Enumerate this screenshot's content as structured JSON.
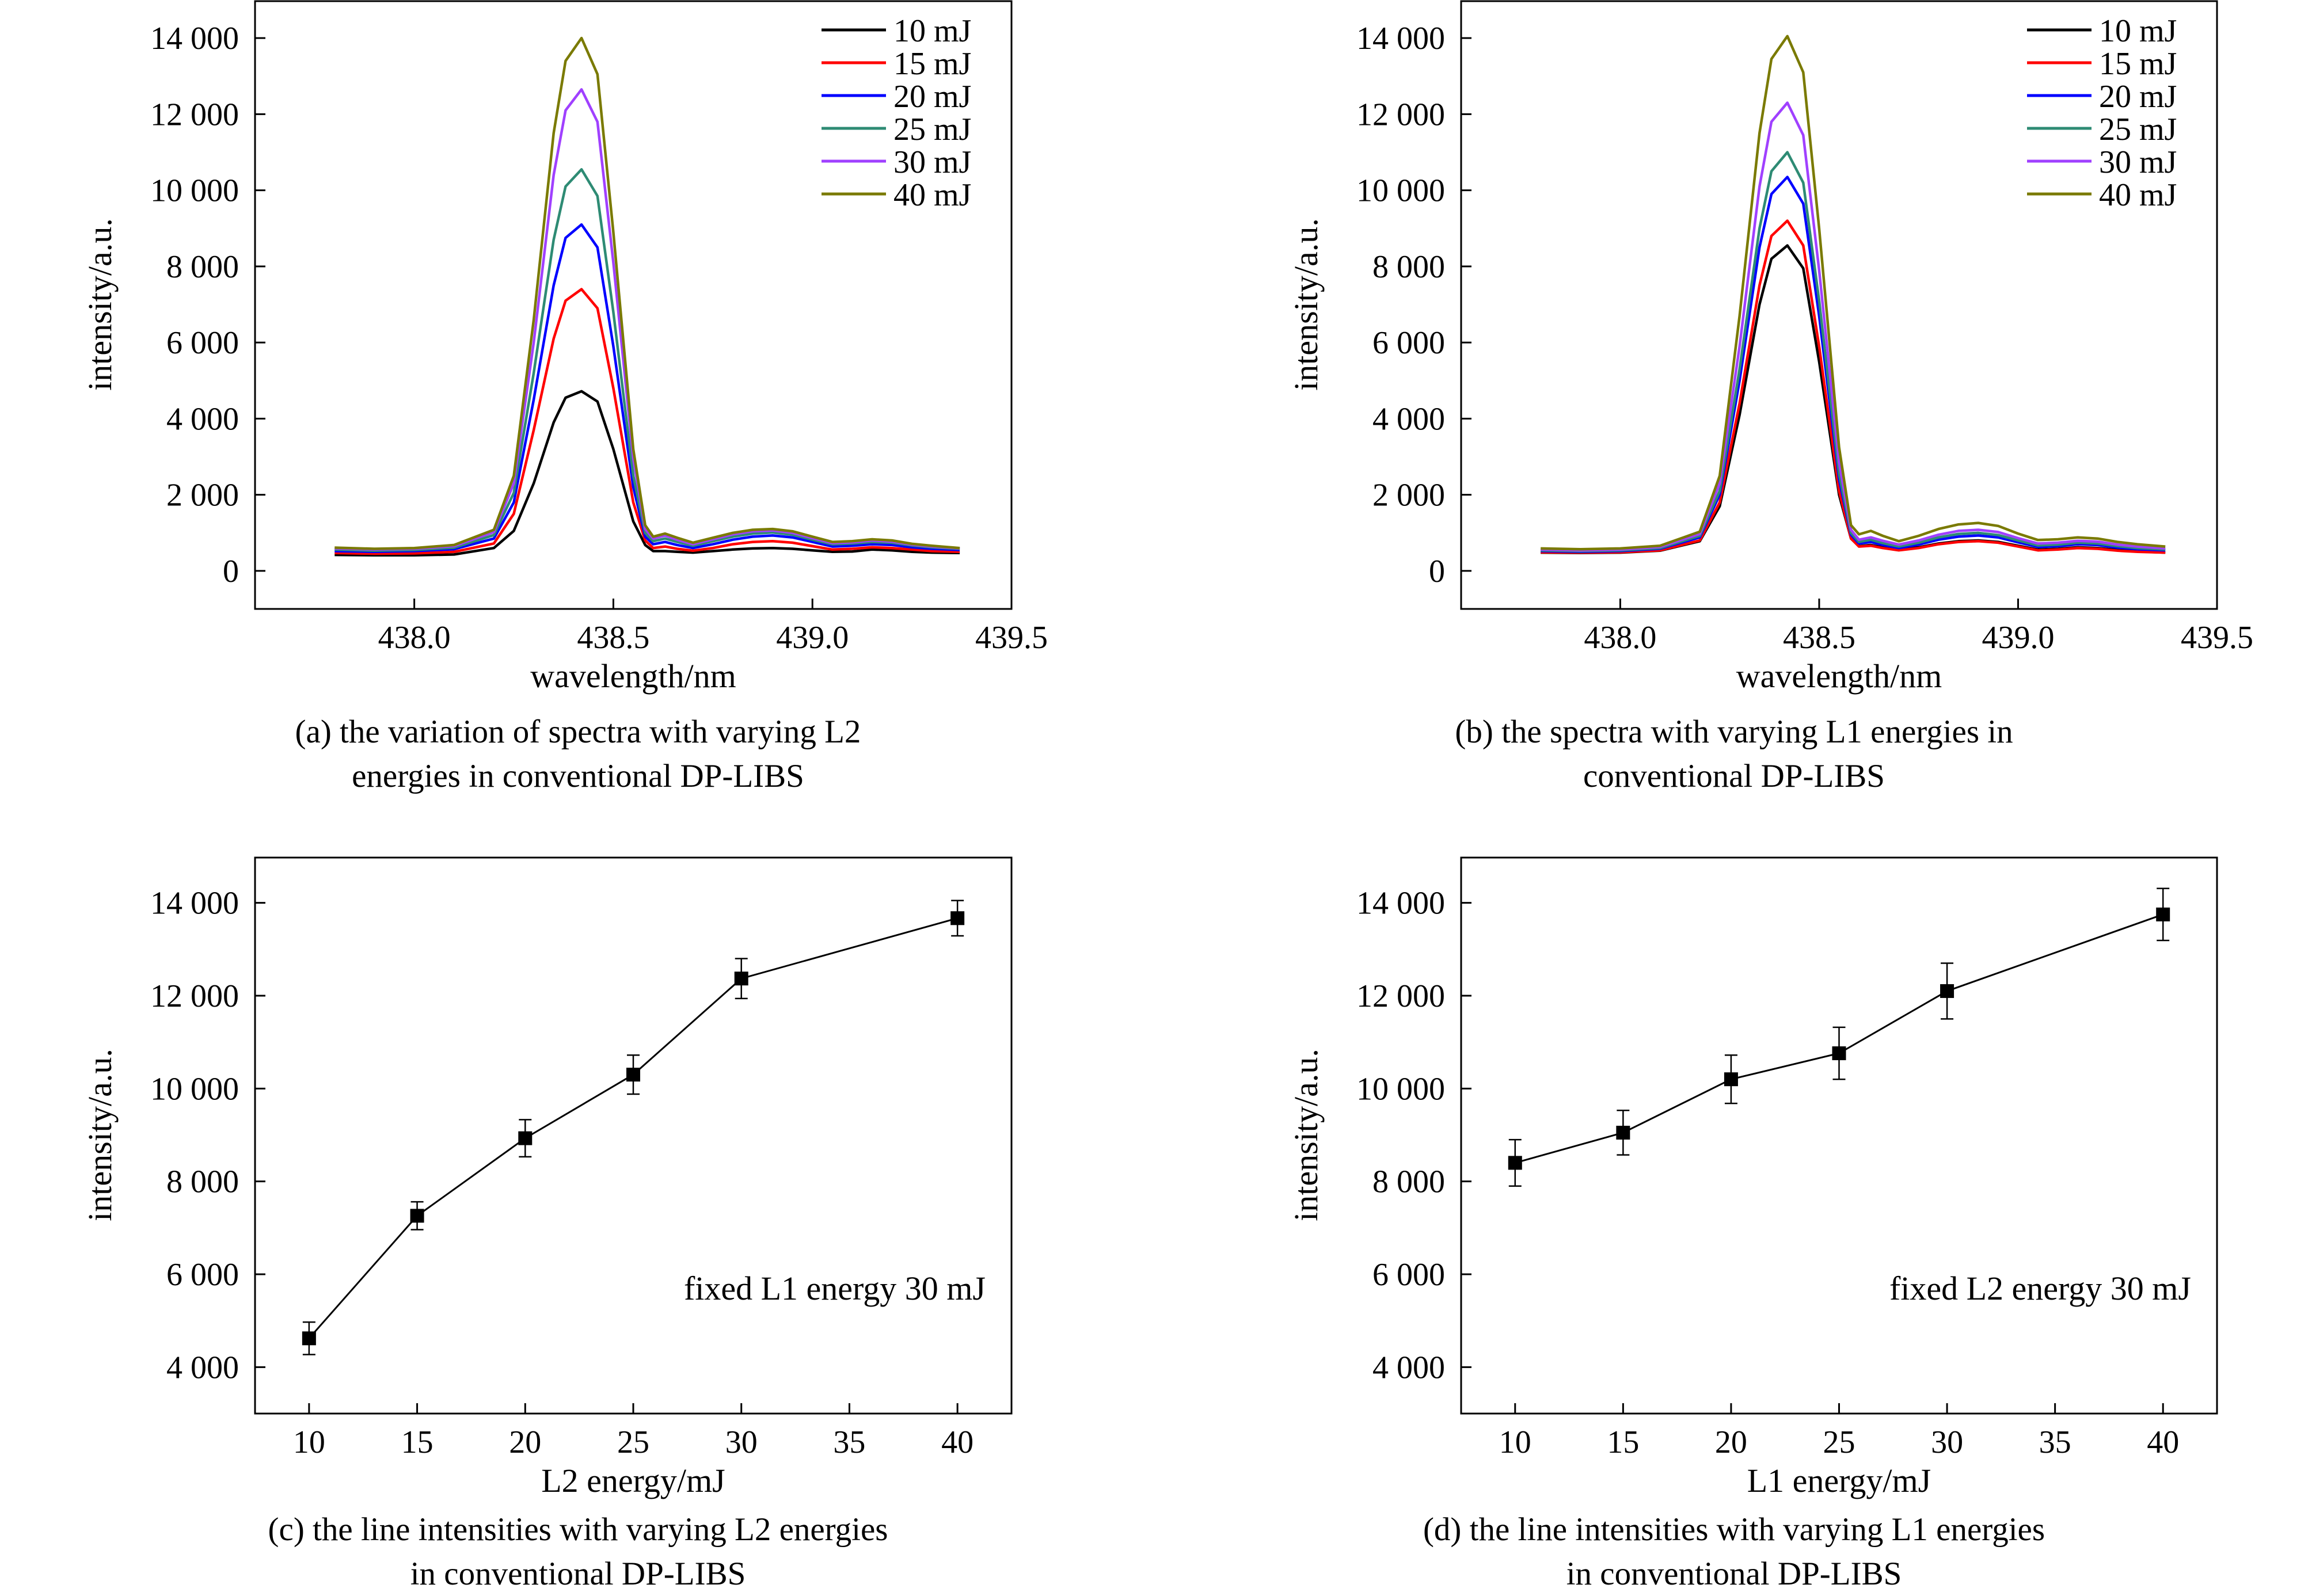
{
  "chart_data": [
    {
      "id": "a",
      "type": "line",
      "caption_line1": "(a) the variation of spectra with varying L2",
      "caption_line2": "energies in conventional DP-LIBS",
      "xlabel": "wavelength/nm",
      "ylabel": "intensity/a.u.",
      "xlim": [
        437.6,
        439.5
      ],
      "ylim": [
        -1000,
        15000
      ],
      "xticks": [
        438.0,
        438.5,
        439.0,
        439.5
      ],
      "xtick_labels": [
        "438.0",
        "438.5",
        "439.0",
        "439.5"
      ],
      "yticks": [
        0,
        2000,
        4000,
        6000,
        8000,
        10000,
        12000,
        14000
      ],
      "ytick_labels": [
        "0",
        "2 000",
        "4 000",
        "6 000",
        "8 000",
        "10 000",
        "12 000",
        "14 000"
      ],
      "legend_position": "top-right",
      "grid": false,
      "x": [
        437.8,
        437.9,
        438.0,
        438.1,
        438.2,
        438.25,
        438.3,
        438.35,
        438.38,
        438.42,
        438.46,
        438.5,
        438.55,
        438.58,
        438.6,
        438.63,
        438.66,
        438.7,
        438.75,
        438.8,
        438.85,
        438.9,
        438.95,
        439.0,
        439.05,
        439.1,
        439.15,
        439.2,
        439.25,
        439.3,
        439.37
      ],
      "series": [
        {
          "name": "10 mJ",
          "color": "#000000",
          "values": [
            420,
            410,
            410,
            430,
            600,
            1050,
            2300,
            3900,
            4550,
            4720,
            4450,
            3200,
            1300,
            680,
            520,
            520,
            500,
            480,
            520,
            560,
            590,
            600,
            580,
            540,
            500,
            510,
            560,
            540,
            500,
            480,
            470
          ]
        },
        {
          "name": "15 mJ",
          "color": "#ff0000",
          "values": [
            470,
            450,
            460,
            500,
            720,
            1500,
            3700,
            6100,
            7100,
            7400,
            6900,
            4800,
            1800,
            800,
            600,
            640,
            580,
            530,
            600,
            700,
            760,
            780,
            740,
            650,
            560,
            580,
            620,
            600,
            560,
            520,
            500
          ]
        },
        {
          "name": "20 mJ",
          "color": "#0000ff",
          "values": [
            520,
            500,
            520,
            570,
            850,
            1800,
            4500,
            7500,
            8750,
            9100,
            8500,
            5900,
            2200,
            900,
            700,
            760,
            680,
            600,
            700,
            820,
            900,
            930,
            880,
            760,
            640,
            660,
            700,
            680,
            620,
            580,
            550
          ]
        },
        {
          "name": "25 mJ",
          "color": "#2e8b74",
          "values": [
            560,
            530,
            550,
            610,
            940,
            2050,
            5200,
            8700,
            10100,
            10550,
            9850,
            6800,
            2500,
            1000,
            780,
            850,
            760,
            660,
            780,
            900,
            980,
            1010,
            950,
            820,
            700,
            720,
            760,
            740,
            670,
            620,
            580
          ]
        },
        {
          "name": "30 mJ",
          "color": "#a040ff",
          "values": [
            590,
            560,
            580,
            650,
            1020,
            2300,
            6000,
            10400,
            12100,
            12650,
            11800,
            8100,
            2950,
            1100,
            850,
            930,
            820,
            700,
            830,
            960,
            1040,
            1060,
            1000,
            860,
            730,
            750,
            800,
            770,
            690,
            640,
            590
          ]
        },
        {
          "name": "40 mJ",
          "color": "#7a7a00",
          "values": [
            610,
            580,
            600,
            680,
            1080,
            2500,
            6600,
            11500,
            13400,
            14000,
            13050,
            8900,
            3200,
            1200,
            900,
            980,
            870,
            740,
            870,
            1000,
            1080,
            1100,
            1040,
            900,
            760,
            780,
            830,
            800,
            710,
            660,
            600
          ]
        }
      ]
    },
    {
      "id": "b",
      "type": "line",
      "caption_line1": "(b) the spectra with varying L1 energies in",
      "caption_line2": "conventional DP-LIBS",
      "xlabel": "wavelength/nm",
      "ylabel": "intensity/a.u.",
      "xlim": [
        437.6,
        439.5
      ],
      "ylim": [
        -1000,
        15000
      ],
      "xticks": [
        438.0,
        438.5,
        439.0,
        439.5
      ],
      "xtick_labels": [
        "438.0",
        "438.5",
        "439.0",
        "439.5"
      ],
      "yticks": [
        0,
        2000,
        4000,
        6000,
        8000,
        10000,
        12000,
        14000
      ],
      "ytick_labels": [
        "0",
        "2 000",
        "4 000",
        "6 000",
        "8 000",
        "10 000",
        "12 000",
        "14 000"
      ],
      "legend_position": "top-right",
      "grid": false,
      "x": [
        437.8,
        437.9,
        438.0,
        438.1,
        438.2,
        438.25,
        438.3,
        438.35,
        438.38,
        438.42,
        438.46,
        438.5,
        438.55,
        438.58,
        438.6,
        438.63,
        438.66,
        438.7,
        438.75,
        438.8,
        438.85,
        438.9,
        438.95,
        439.0,
        439.05,
        439.1,
        439.15,
        439.2,
        439.25,
        439.3,
        439.37
      ],
      "series": [
        {
          "name": "10 mJ",
          "color": "#000000",
          "values": [
            480,
            470,
            480,
            530,
            780,
            1700,
            4100,
            7000,
            8200,
            8550,
            7950,
            5500,
            2000,
            850,
            650,
            680,
            620,
            560,
            620,
            720,
            780,
            800,
            760,
            660,
            560,
            580,
            620,
            600,
            550,
            510,
            480
          ]
        },
        {
          "name": "15 mJ",
          "color": "#ff0000",
          "values": [
            490,
            480,
            490,
            540,
            800,
            1800,
            4400,
            7500,
            8800,
            9200,
            8550,
            5900,
            2100,
            850,
            640,
            660,
            600,
            540,
            600,
            700,
            760,
            780,
            740,
            640,
            540,
            560,
            600,
            580,
            530,
            500,
            480
          ]
        },
        {
          "name": "20 mJ",
          "color": "#0000ff",
          "values": [
            520,
            500,
            520,
            580,
            880,
            2000,
            5000,
            8500,
            9900,
            10350,
            9650,
            6700,
            2400,
            950,
            720,
            760,
            680,
            600,
            690,
            820,
            900,
            930,
            880,
            750,
            630,
            650,
            700,
            680,
            610,
            570,
            540
          ]
        },
        {
          "name": "25 mJ",
          "color": "#2e8b74",
          "values": [
            540,
            520,
            540,
            600,
            920,
            2100,
            5300,
            9000,
            10500,
            11000,
            10200,
            7100,
            2550,
            1000,
            760,
            820,
            730,
            640,
            740,
            880,
            970,
            1000,
            940,
            800,
            670,
            690,
            740,
            720,
            650,
            600,
            560
          ]
        },
        {
          "name": "30 mJ",
          "color": "#a040ff",
          "values": [
            560,
            540,
            560,
            630,
            970,
            2300,
            5900,
            10100,
            11800,
            12300,
            11450,
            7900,
            2850,
            1080,
            820,
            880,
            790,
            690,
            800,
            950,
            1050,
            1080,
            1020,
            860,
            720,
            740,
            790,
            770,
            690,
            640,
            590
          ]
        },
        {
          "name": "40 mJ",
          "color": "#7a7a00",
          "values": [
            590,
            570,
            590,
            660,
            1030,
            2500,
            6700,
            11500,
            13450,
            14050,
            13100,
            9000,
            3250,
            1200,
            960,
            1050,
            920,
            780,
            920,
            1100,
            1220,
            1260,
            1180,
            980,
            810,
            830,
            880,
            850,
            760,
            700,
            640
          ]
        }
      ]
    },
    {
      "id": "c",
      "type": "scatter",
      "caption_line1": "(c) the line intensities with varying L2 energies",
      "caption_line2": "in conventional DP-LIBS",
      "xlabel": "L2 energy/mJ",
      "ylabel": "intensity/a.u.",
      "annotation": "fixed L1 energy 30 mJ",
      "xlim": [
        7.5,
        42.5
      ],
      "ylim": [
        3000,
        15000
      ],
      "xticks": [
        10,
        15,
        20,
        25,
        30,
        35,
        40
      ],
      "xtick_labels": [
        "10",
        "15",
        "20",
        "25",
        "30",
        "35",
        "40"
      ],
      "yticks": [
        4000,
        6000,
        8000,
        10000,
        12000,
        14000
      ],
      "ytick_labels": [
        "4 000",
        "6 000",
        "8 000",
        "10 000",
        "12 000",
        "14 000"
      ],
      "grid": false,
      "x": [
        10,
        15,
        20,
        25,
        30,
        40
      ],
      "y": [
        4620,
        7260,
        8930,
        10300,
        12370,
        13670
      ],
      "yerr": [
        350,
        300,
        400,
        420,
        430,
        380
      ]
    },
    {
      "id": "d",
      "type": "scatter",
      "caption_line1": "(d) the line intensities with varying L1 energies",
      "caption_line2": "in conventional DP-LIBS",
      "xlabel": "L1 energy/mJ",
      "ylabel": "intensity/a.u.",
      "annotation": "fixed L2 energy 30 mJ",
      "xlim": [
        7.5,
        42.5
      ],
      "ylim": [
        3000,
        15000
      ],
      "xticks": [
        10,
        15,
        20,
        25,
        30,
        35,
        40
      ],
      "xtick_labels": [
        "10",
        "15",
        "20",
        "25",
        "30",
        "35",
        "40"
      ],
      "yticks": [
        4000,
        6000,
        8000,
        10000,
        12000,
        14000
      ],
      "ytick_labels": [
        "4 000",
        "6 000",
        "8 000",
        "10 000",
        "12 000",
        "14 000"
      ],
      "grid": false,
      "x": [
        10,
        15,
        20,
        25,
        30,
        40
      ],
      "y": [
        8400,
        9050,
        10200,
        10760,
        12100,
        13750
      ],
      "yerr": [
        500,
        480,
        520,
        560,
        600,
        560
      ]
    }
  ]
}
